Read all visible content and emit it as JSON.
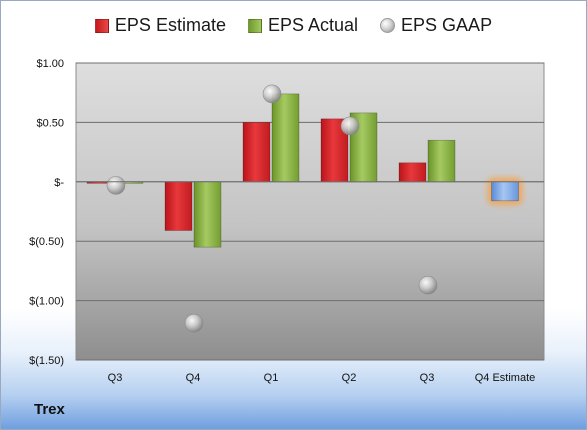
{
  "chart_data": {
    "type": "bar",
    "categories": [
      "Q3",
      "Q4",
      "Q1",
      "Q2",
      "Q3",
      "Q4 Estimate"
    ],
    "series": [
      {
        "name": "EPS Estimate",
        "values": [
          -0.01,
          -0.41,
          0.5,
          0.53,
          0.16,
          -0.16
        ],
        "color": "#d0242a"
      },
      {
        "name": "EPS Actual",
        "values": [
          0,
          -0.55,
          0.74,
          0.58,
          0.35,
          null
        ],
        "color": "#86b043"
      },
      {
        "name": "EPS GAAP",
        "values": [
          -0.03,
          -1.19,
          0.74,
          0.47,
          -0.87,
          null
        ],
        "color": "#b0b0b0",
        "marker": "sphere"
      }
    ],
    "q4_estimate_color": "#6f9ee0",
    "ylim": [
      -1.5,
      1.0
    ],
    "yticks": [
      1.0,
      0.5,
      0,
      -0.5,
      -1.0,
      -1.5
    ],
    "ytick_labels": [
      "$1.00",
      "$0.50",
      "$-",
      "$(0.50)",
      "$(1.00)",
      "$(1.50)"
    ],
    "grid": true,
    "legend_position": "top"
  },
  "legend": {
    "estimate": "EPS Estimate",
    "actual": "EPS Actual",
    "gaap": "EPS GAAP"
  },
  "company": "Trex"
}
